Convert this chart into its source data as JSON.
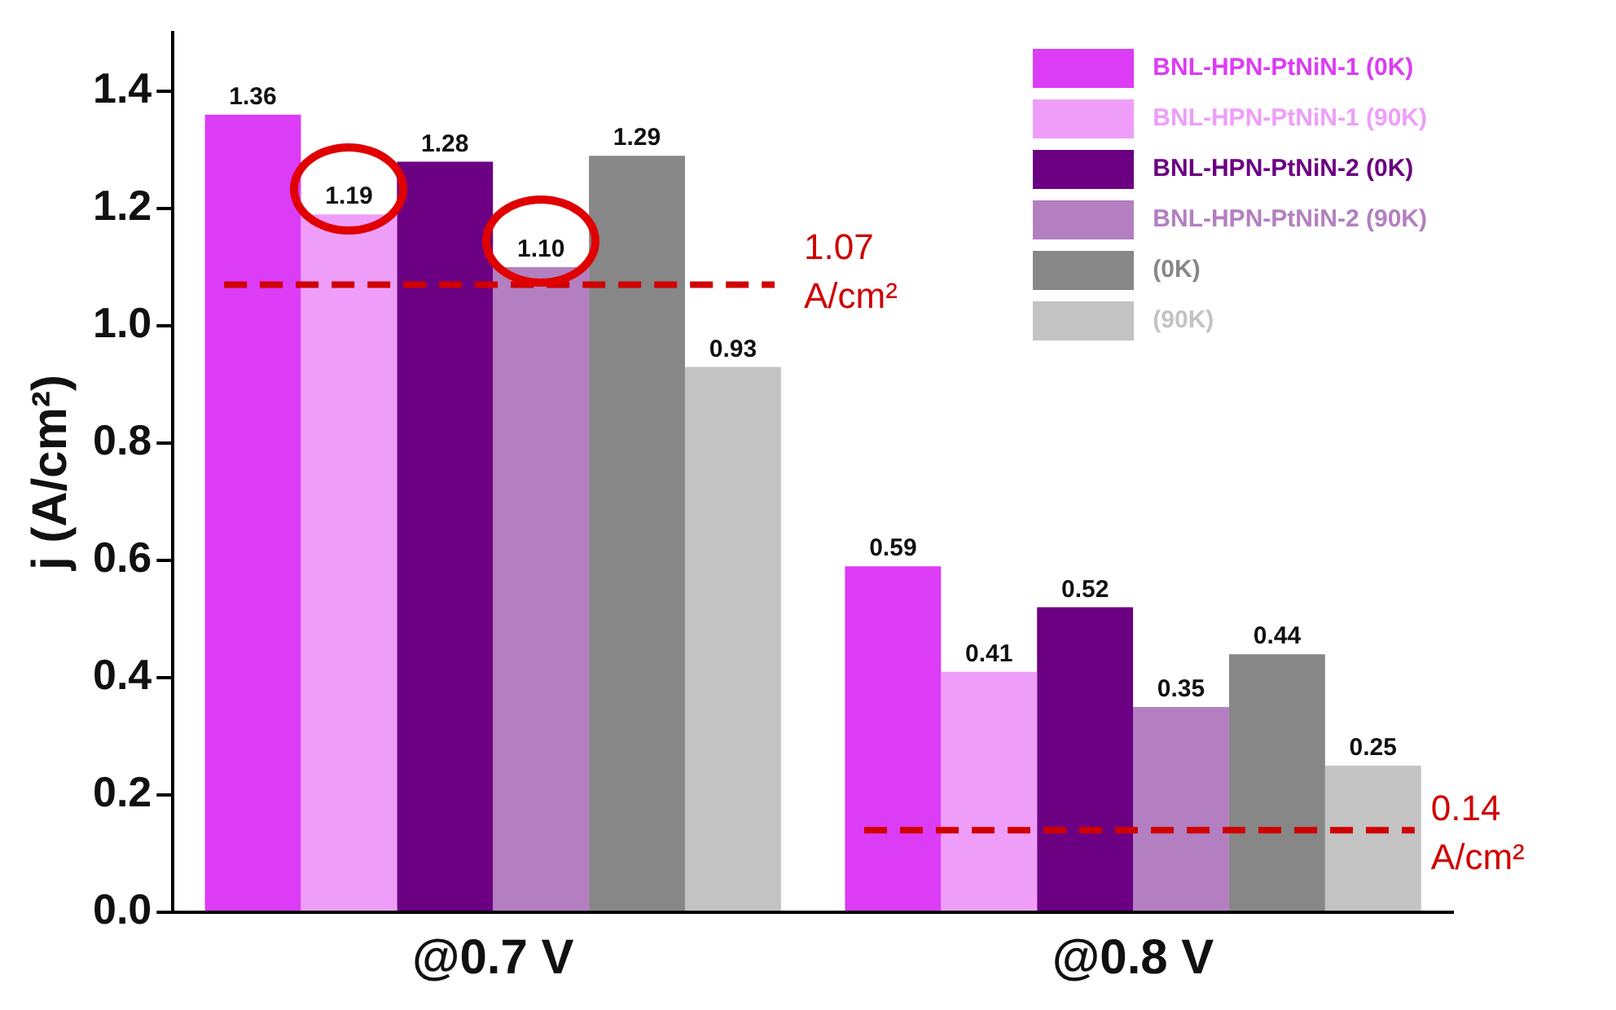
{
  "chart_data": {
    "type": "bar",
    "ylabel": "j (A/cm²)",
    "categories": [
      "@0.7 V",
      "@0.8 V"
    ],
    "series": [
      {
        "name": "BNL-HPN-PtNiN-1 (0K)",
        "color": "#dc3cf5",
        "values": [
          1.36,
          0.59
        ],
        "value_labels": [
          "1.36",
          "0.59"
        ]
      },
      {
        "name": "BNL-HPN-PtNiN-1 (90K)",
        "color": "#ee9ef9",
        "values": [
          1.19,
          0.41
        ],
        "value_labels": [
          "1.19",
          "0.41"
        ]
      },
      {
        "name": "BNL-HPN-PtNiN-2 (0K)",
        "color": "#6b0082",
        "values": [
          1.28,
          0.52
        ],
        "value_labels": [
          "1.28",
          "0.52"
        ]
      },
      {
        "name": "BNL-HPN-PtNiN-2 (90K)",
        "color": "#b37fc0",
        "values": [
          1.1,
          0.35
        ],
        "value_labels": [
          "1.10",
          "0.35"
        ]
      },
      {
        "name": "(0K)",
        "color": "#878787",
        "values": [
          1.29,
          0.44
        ],
        "value_labels": [
          "1.29",
          "0.44"
        ]
      },
      {
        "name": "(90K)",
        "color": "#c3c3c3",
        "values": [
          0.93,
          0.25
        ],
        "value_labels": [
          "0.93",
          "0.25"
        ]
      }
    ],
    "ylim": [
      0,
      1.5
    ],
    "yticks": [
      {
        "value": 0,
        "label": "0.0"
      },
      0.2,
      0.4,
      0.6,
      0.8,
      {
        "value": 1,
        "label": "1.0"
      },
      1.2,
      1.4
    ],
    "ref_lines": [
      {
        "axis": "y",
        "value": 1.07,
        "label": "1.07 A/cm²",
        "color": "#d00000",
        "line_style": "dashed"
      },
      {
        "axis": "y",
        "value": 0.14,
        "label": "0.14 A/cm²",
        "color": "#d00000",
        "line_style": "dashed"
      }
    ],
    "grid": false,
    "legend": "top right"
  }
}
